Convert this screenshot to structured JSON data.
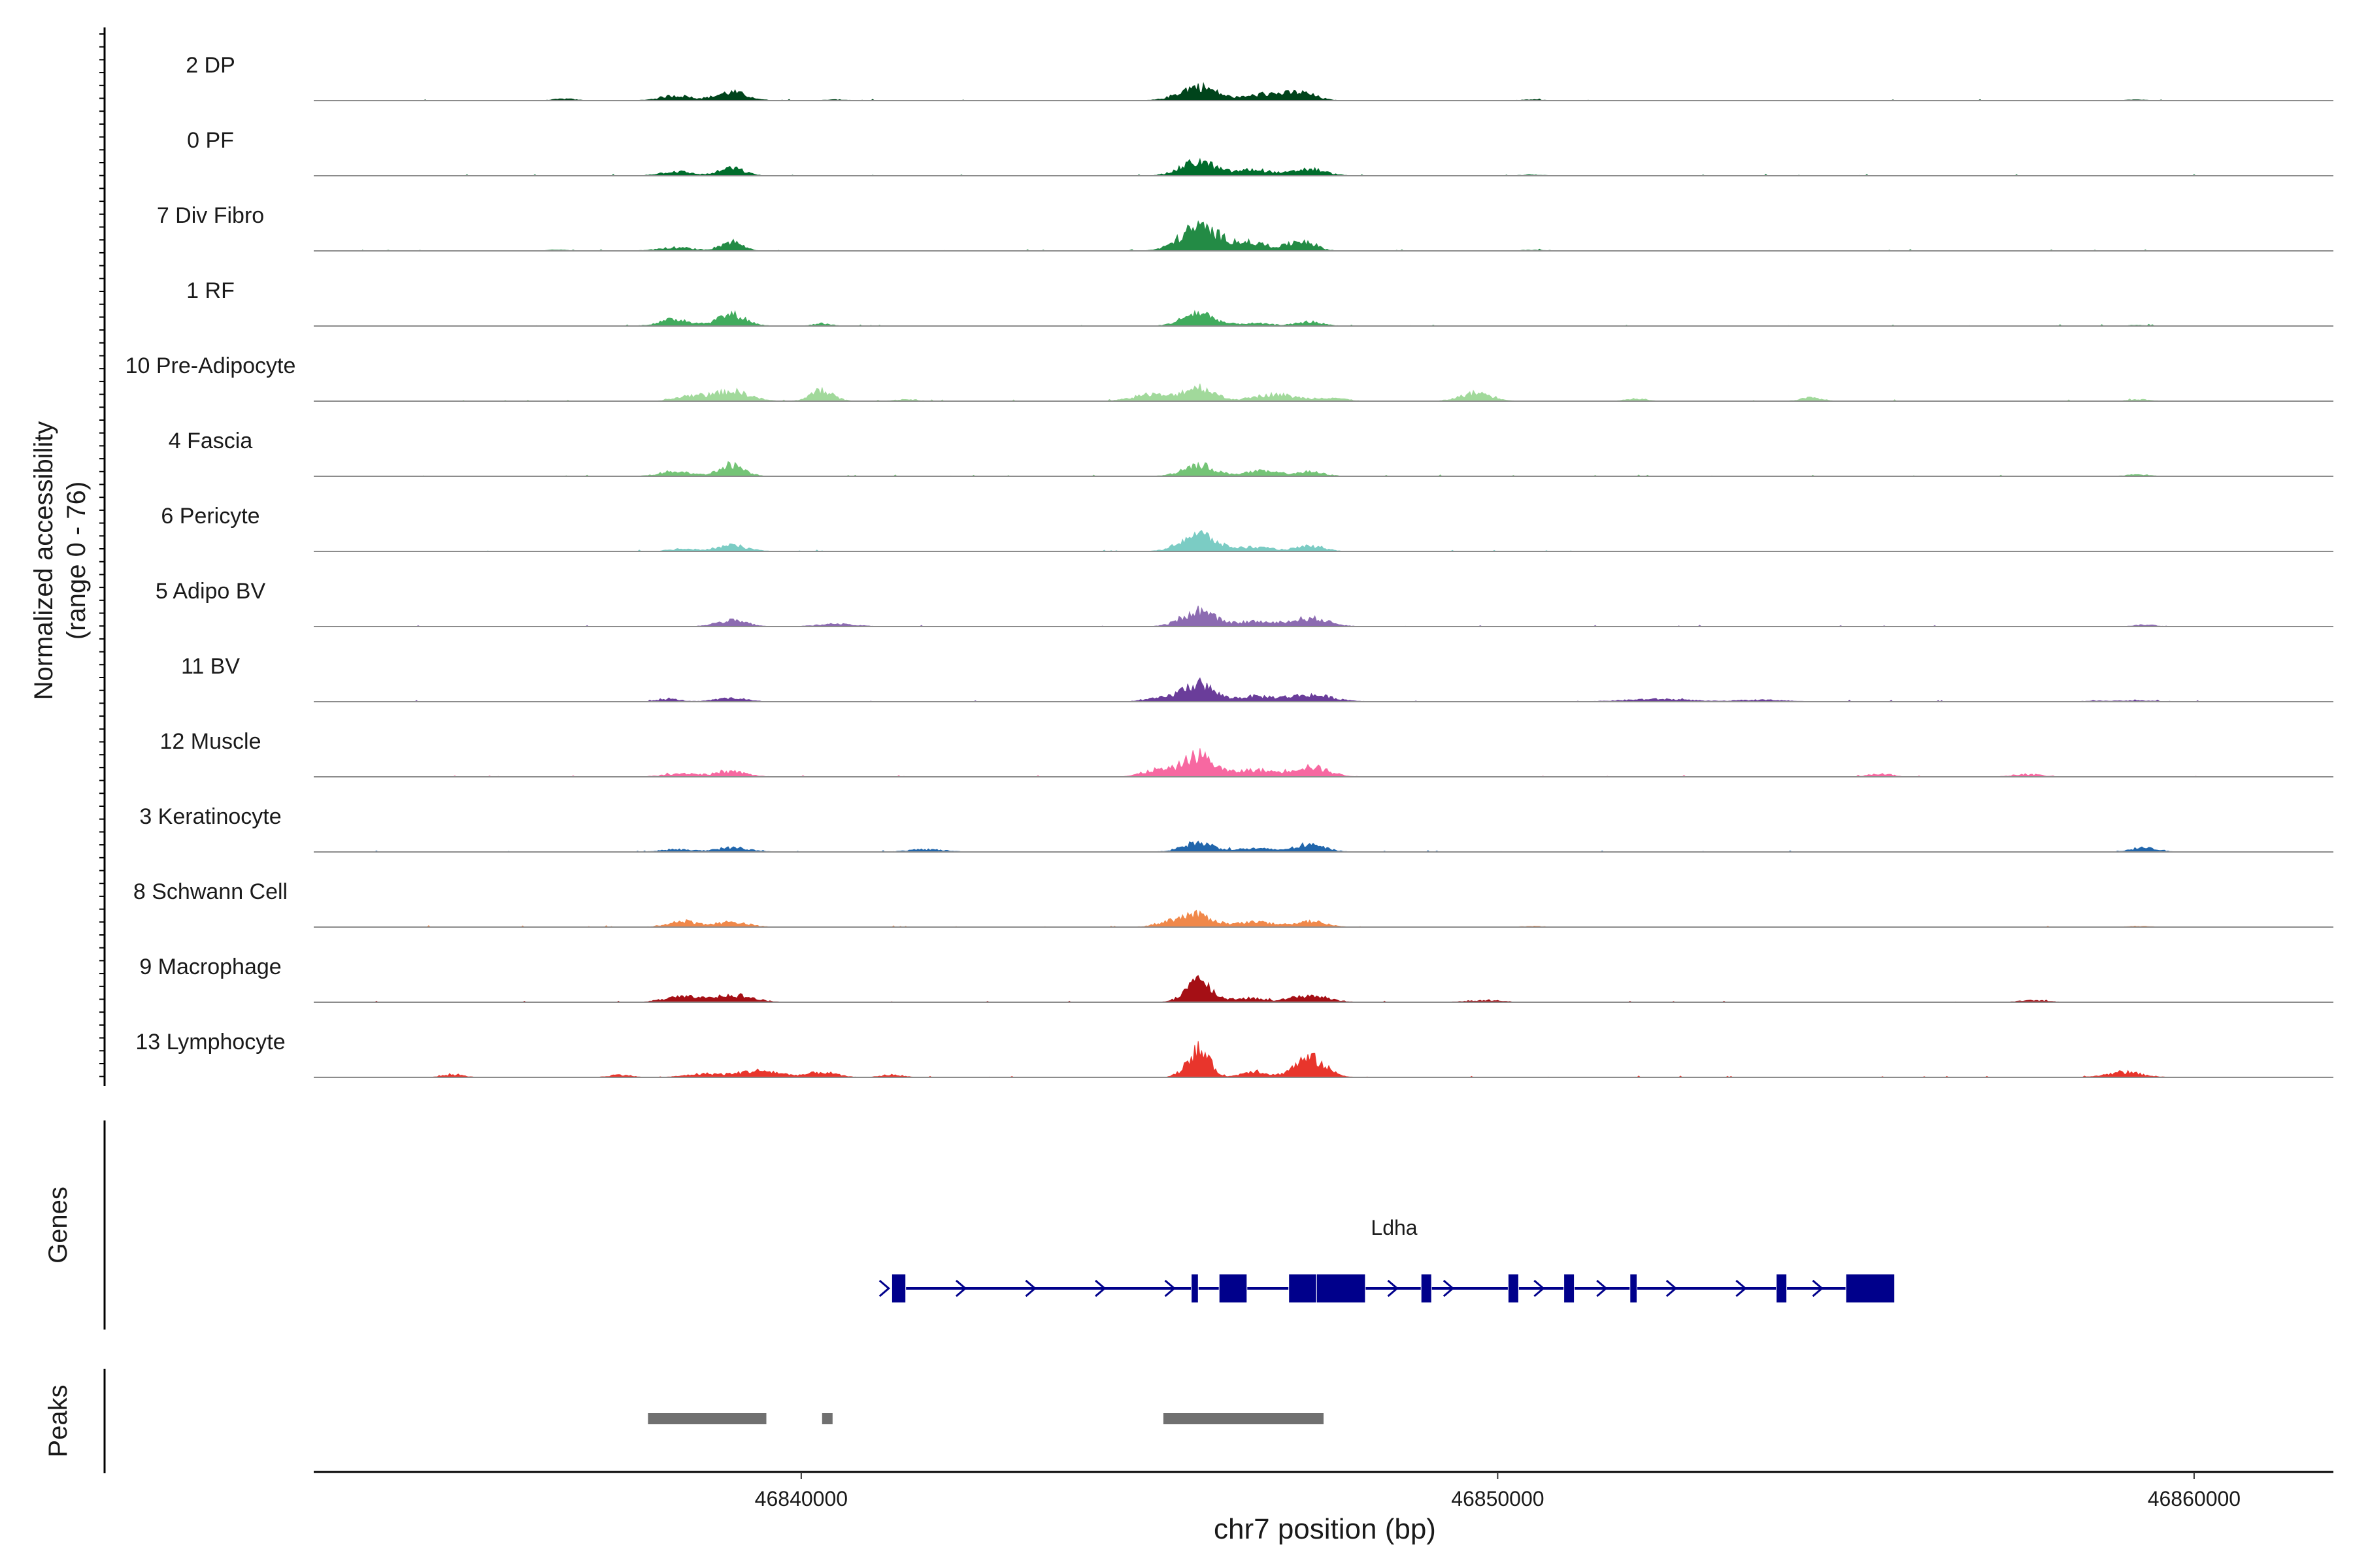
{
  "chart_data": {
    "type": "genome-browser-tracks",
    "chromosome": "chr7",
    "region": [
      46833000,
      46862000
    ],
    "xlabel": "chr7 position (bp)",
    "x_ticks": [
      46840000,
      46850000,
      46860000
    ],
    "x_tick_labels": [
      "46840000",
      "46850000",
      "46860000"
    ],
    "ylabel_line1": "Normalized accessibility",
    "ylabel_line2": "(range 0 - 76)",
    "ylim": [
      0,
      76
    ],
    "tracks": [
      {
        "label": "2 DP",
        "color": "#00441b",
        "peaks": [
          [
            46836600,
            2,
            150
          ],
          [
            46838200,
            6,
            220
          ],
          [
            46839000,
            10,
            220
          ],
          [
            46840500,
            1,
            150
          ],
          [
            46845700,
            17,
            260
          ],
          [
            46846700,
            8,
            280
          ],
          [
            46847200,
            8,
            200
          ],
          [
            46850500,
            1,
            150
          ],
          [
            46859200,
            1,
            150
          ]
        ]
      },
      {
        "label": "0 PF",
        "color": "#006d2c",
        "peaks": [
          [
            46838200,
            5,
            220
          ],
          [
            46839000,
            9,
            180
          ],
          [
            46845700,
            17,
            240
          ],
          [
            46846500,
            7,
            260
          ],
          [
            46847300,
            8,
            220
          ],
          [
            46850500,
            1,
            150
          ]
        ]
      },
      {
        "label": "7 Div Fibro",
        "color": "#238b45",
        "peaks": [
          [
            46836500,
            1,
            150
          ],
          [
            46838200,
            4,
            240
          ],
          [
            46839000,
            11,
            160
          ],
          [
            46845700,
            28,
            260
          ],
          [
            46846400,
            10,
            320
          ],
          [
            46847200,
            12,
            180
          ],
          [
            46850500,
            1,
            150
          ]
        ]
      },
      {
        "label": "1 RF",
        "color": "#41ab5d",
        "peaks": [
          [
            46838200,
            8,
            220
          ],
          [
            46839000,
            14,
            200
          ],
          [
            46840300,
            3,
            120
          ],
          [
            46845700,
            16,
            220
          ],
          [
            46846500,
            3,
            260
          ],
          [
            46847300,
            5,
            180
          ],
          [
            46859200,
            1,
            150
          ]
        ]
      },
      {
        "label": "10 Pre-Adipocyte",
        "color": "#a1d99b",
        "peaks": [
          [
            46838400,
            6,
            200
          ],
          [
            46839000,
            12,
            250
          ],
          [
            46840300,
            13,
            160
          ],
          [
            46841500,
            2,
            150
          ],
          [
            46845000,
            8,
            240
          ],
          [
            46845700,
            17,
            220
          ],
          [
            46846800,
            8,
            300
          ],
          [
            46847600,
            4,
            200
          ],
          [
            46849700,
            10,
            220
          ],
          [
            46852000,
            3,
            150
          ],
          [
            46854500,
            4,
            150
          ],
          [
            46859200,
            2,
            150
          ]
        ]
      },
      {
        "label": "4 Fascia",
        "color": "#74c476",
        "peaks": [
          [
            46838200,
            6,
            220
          ],
          [
            46839000,
            14,
            180
          ],
          [
            46845700,
            14,
            220
          ],
          [
            46846600,
            6,
            260
          ],
          [
            46847300,
            5,
            200
          ],
          [
            46859200,
            2,
            150
          ]
        ]
      },
      {
        "label": "6 Pericyte",
        "color": "#7bccc4",
        "peaks": [
          [
            46838300,
            3,
            200
          ],
          [
            46839000,
            7,
            220
          ],
          [
            46845700,
            21,
            240
          ],
          [
            46846500,
            5,
            260
          ],
          [
            46847300,
            6,
            200
          ]
        ]
      },
      {
        "label": "5 Adipo BV",
        "color": "#8c6bb1",
        "peaks": [
          [
            46839000,
            7,
            220
          ],
          [
            46840500,
            3,
            260
          ],
          [
            46845700,
            19,
            230
          ],
          [
            46846500,
            6,
            240
          ],
          [
            46847300,
            10,
            260
          ],
          [
            46859300,
            2,
            150
          ]
        ]
      },
      {
        "label": "11 BV",
        "color": "#6a3d9a",
        "peaks": [
          [
            46838100,
            3,
            160
          ],
          [
            46839000,
            4,
            220
          ],
          [
            46845200,
            4,
            240
          ],
          [
            46845700,
            21,
            220
          ],
          [
            46846500,
            6,
            260
          ],
          [
            46847300,
            8,
            320
          ],
          [
            46852300,
            3,
            450
          ],
          [
            46853800,
            2,
            320
          ],
          [
            46858800,
            1,
            300
          ],
          [
            46859300,
            1,
            150
          ]
        ]
      },
      {
        "label": "12 Muscle",
        "color": "#f768a1",
        "peaks": [
          [
            46838300,
            4,
            240
          ],
          [
            46839000,
            6,
            220
          ],
          [
            46845100,
            8,
            200
          ],
          [
            46845700,
            26,
            220
          ],
          [
            46846500,
            8,
            280
          ],
          [
            46847300,
            12,
            260
          ],
          [
            46855500,
            4,
            150
          ],
          [
            46857600,
            3,
            200
          ]
        ]
      },
      {
        "label": "3 Keratinocyte",
        "color": "#2166ac",
        "peaks": [
          [
            46838200,
            3,
            200
          ],
          [
            46839000,
            5,
            240
          ],
          [
            46841800,
            3,
            250
          ],
          [
            46845700,
            11,
            220
          ],
          [
            46846500,
            4,
            260
          ],
          [
            46847300,
            8,
            230
          ],
          [
            46859300,
            6,
            170
          ]
        ]
      },
      {
        "label": "8 Schwann Cell",
        "color": "#f0884a",
        "peaks": [
          [
            46838300,
            7,
            210
          ],
          [
            46839000,
            6,
            230
          ],
          [
            46845300,
            6,
            200
          ],
          [
            46845700,
            14,
            220
          ],
          [
            46846500,
            6,
            260
          ],
          [
            46847300,
            7,
            220
          ],
          [
            46850500,
            1,
            150
          ],
          [
            46859200,
            1,
            150
          ]
        ]
      },
      {
        "label": "9 Macrophage",
        "color": "#a50f15",
        "peaks": [
          [
            46838300,
            6,
            260
          ],
          [
            46839000,
            9,
            280
          ],
          [
            46845700,
            26,
            180
          ],
          [
            46846400,
            5,
            240
          ],
          [
            46847300,
            8,
            260
          ],
          [
            46849800,
            2,
            250
          ],
          [
            46857700,
            2,
            200
          ]
        ]
      },
      {
        "label": "13 Lymphocyte",
        "color": "#e8352c",
        "peaks": [
          [
            46835000,
            3,
            150
          ],
          [
            46837400,
            3,
            150
          ],
          [
            46838600,
            4,
            250
          ],
          [
            46839400,
            8,
            300
          ],
          [
            46840300,
            6,
            200
          ],
          [
            46841300,
            3,
            150
          ],
          [
            46845700,
            33,
            160
          ],
          [
            46846500,
            8,
            160
          ],
          [
            46847300,
            23,
            220
          ],
          [
            46859000,
            6,
            250
          ]
        ]
      }
    ],
    "gene_track_label": "Genes",
    "gene": {
      "name": "Ldha",
      "strand": "+",
      "start": 46841300,
      "end": 46855700,
      "color": "#00008b",
      "exons": [
        [
          46841300,
          46841500
        ],
        [
          46845600,
          46845700
        ],
        [
          46846000,
          46846400
        ],
        [
          46847000,
          46847400
        ],
        [
          46847400,
          46848100
        ],
        [
          46848900,
          46849050
        ],
        [
          46850150,
          46850300
        ],
        [
          46850950,
          46851100
        ],
        [
          46851900,
          46852000
        ],
        [
          46854000,
          46854150
        ],
        [
          46855000,
          46855700
        ]
      ],
      "arrows": [
        46841200,
        46842300,
        46843300,
        46844300,
        46845300,
        46848500,
        46849300,
        46850600,
        46851500,
        46852500,
        46853500,
        46854600
      ]
    },
    "peak_track_label": "Peaks",
    "peak_color": "#707070",
    "peak_regions": [
      [
        46837800,
        46839500
      ],
      [
        46840300,
        46840450
      ],
      [
        46845200,
        46847500
      ]
    ]
  }
}
